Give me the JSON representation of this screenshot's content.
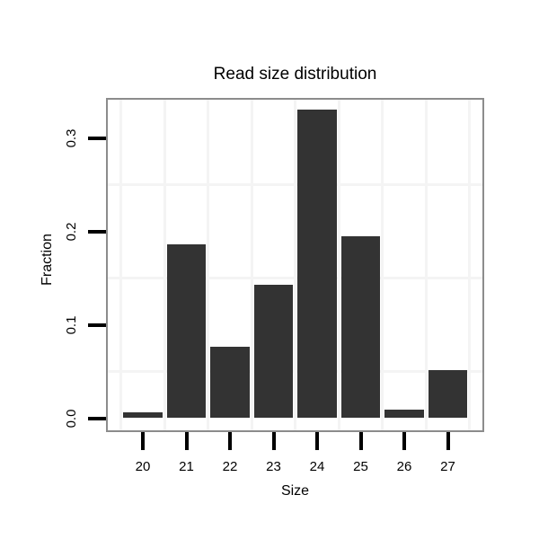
{
  "figure": {
    "background": "#ffffff"
  },
  "chart_data": {
    "type": "bar",
    "title": "Read size distribution",
    "xlabel": "Size",
    "ylabel": "Fraction",
    "categories": [
      "20",
      "21",
      "22",
      "23",
      "24",
      "25",
      "26",
      "27"
    ],
    "values": [
      0.006,
      0.186,
      0.076,
      0.143,
      0.33,
      0.195,
      0.009,
      0.051
    ],
    "ytick_values": [
      0.0,
      0.1,
      0.2,
      0.3
    ],
    "ytick_labels": [
      "0.0",
      "0.1",
      "0.2",
      "0.3"
    ],
    "ylim": [
      -0.015,
      0.343
    ],
    "grid": "minor-only",
    "legend": "none",
    "colors": {
      "bar_fill": "#333333",
      "panel_border": "#8c8c8c",
      "grid_minor": "#f4f4f4",
      "tick": "#000000",
      "text": "#000000"
    }
  }
}
